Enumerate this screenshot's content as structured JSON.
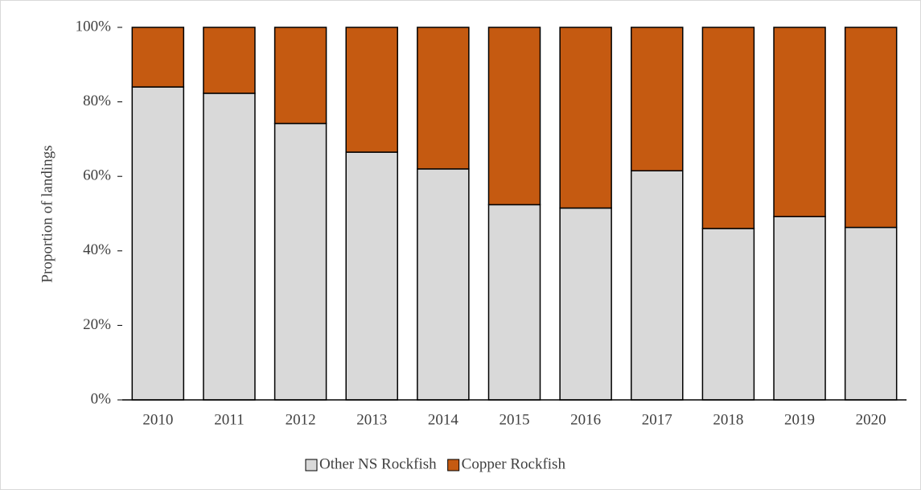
{
  "chart_data": {
    "type": "stacked_bar",
    "y_label": "Proportion of landings",
    "categories": [
      "2010",
      "2011",
      "2012",
      "2013",
      "2014",
      "2015",
      "2016",
      "2017",
      "2018",
      "2019",
      "2020"
    ],
    "series": [
      {
        "name": "Other NS Rockfish",
        "color": "#d9d9d9",
        "values": [
          84,
          82.3,
          74.2,
          66.5,
          62,
          52.4,
          51.5,
          61.5,
          46,
          49.2,
          46.3
        ]
      },
      {
        "name": "Copper Rockfish",
        "color": "#c55a11",
        "values": [
          16,
          17.7,
          25.8,
          33.5,
          38,
          47.6,
          48.5,
          38.5,
          54,
          50.8,
          53.7
        ]
      }
    ],
    "ylim": [
      0,
      100
    ],
    "yticks": [
      {
        "value": 0,
        "label": "0%"
      },
      {
        "value": 20,
        "label": "20%"
      },
      {
        "value": 40,
        "label": "40%"
      },
      {
        "value": 60,
        "label": "60%"
      },
      {
        "value": 80,
        "label": "80%"
      },
      {
        "value": 100,
        "label": "100%"
      }
    ],
    "legend": "bottom"
  }
}
